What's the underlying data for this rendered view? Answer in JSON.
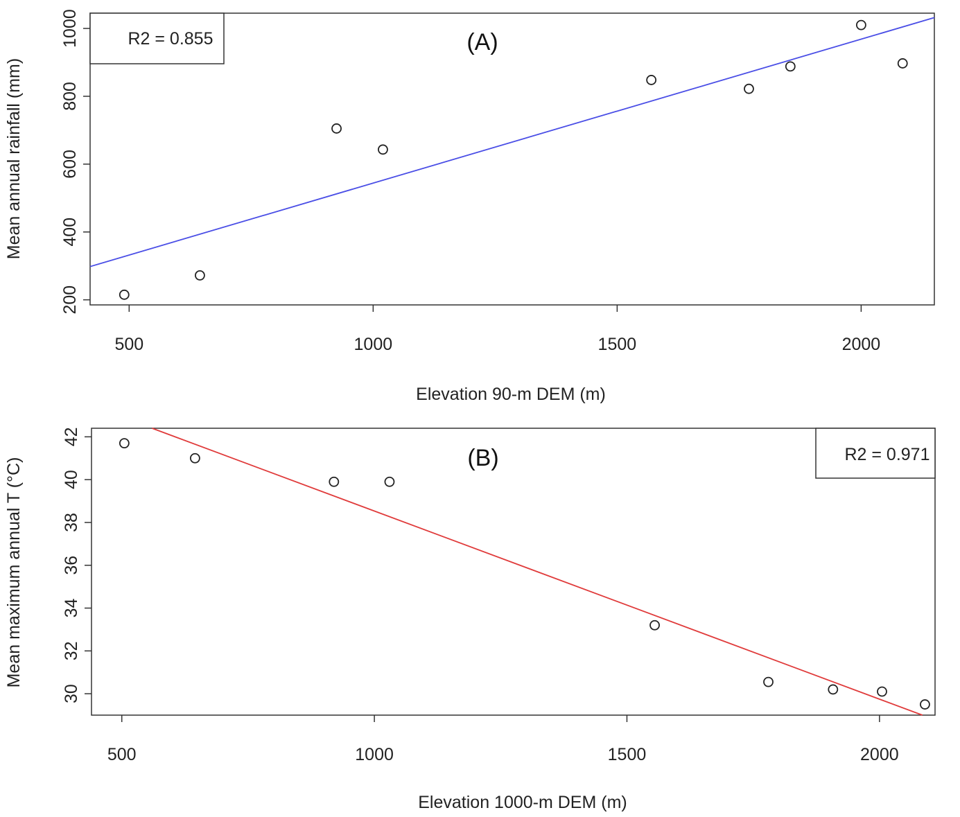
{
  "chart_data": [
    {
      "type": "scatter",
      "panel_label": "(A)",
      "annotation": "R2 = 0.855",
      "annotation_position": "top-left",
      "xlabel": "Elevation 90-m DEM (m)",
      "ylabel": "Mean annual rainfall (mm)",
      "xlim": [
        420,
        2150
      ],
      "ylim": [
        185,
        1045
      ],
      "xticks": [
        500,
        1000,
        1500,
        2000
      ],
      "yticks": [
        200,
        400,
        600,
        800,
        1000
      ],
      "grid": false,
      "points": [
        {
          "x": 490,
          "y": 215
        },
        {
          "x": 645,
          "y": 272
        },
        {
          "x": 925,
          "y": 705
        },
        {
          "x": 1020,
          "y": 643
        },
        {
          "x": 1570,
          "y": 848
        },
        {
          "x": 1770,
          "y": 822
        },
        {
          "x": 1855,
          "y": 888
        },
        {
          "x": 2000,
          "y": 1010
        },
        {
          "x": 2085,
          "y": 897
        }
      ],
      "fit_line": {
        "x": [
          420,
          2150
        ],
        "y": [
          298,
          1032
        ],
        "color": "#4a4ee6"
      }
    },
    {
      "type": "scatter",
      "panel_label": "(B)",
      "annotation": "R2 = 0.971",
      "annotation_position": "top-right",
      "xlabel": "Elevation 1000-m DEM (m)",
      "ylabel": "Mean maximum annual T (°C)",
      "xlim": [
        440,
        2110
      ],
      "ylim": [
        29.0,
        42.4
      ],
      "xticks": [
        500,
        1000,
        1500,
        2000
      ],
      "yticks": [
        30,
        32,
        34,
        36,
        38,
        40,
        42
      ],
      "grid": false,
      "points": [
        {
          "x": 505,
          "y": 41.7
        },
        {
          "x": 645,
          "y": 41.0
        },
        {
          "x": 920,
          "y": 39.9
        },
        {
          "x": 1030,
          "y": 39.9
        },
        {
          "x": 1555,
          "y": 33.2
        },
        {
          "x": 1780,
          "y": 30.55
        },
        {
          "x": 1908,
          "y": 30.2
        },
        {
          "x": 2005,
          "y": 30.1
        },
        {
          "x": 2090,
          "y": 29.5
        }
      ],
      "fit_line": {
        "x": [
          560,
          2085
        ],
        "y": [
          42.4,
          29.0
        ],
        "color": "#e03b3b"
      }
    }
  ]
}
